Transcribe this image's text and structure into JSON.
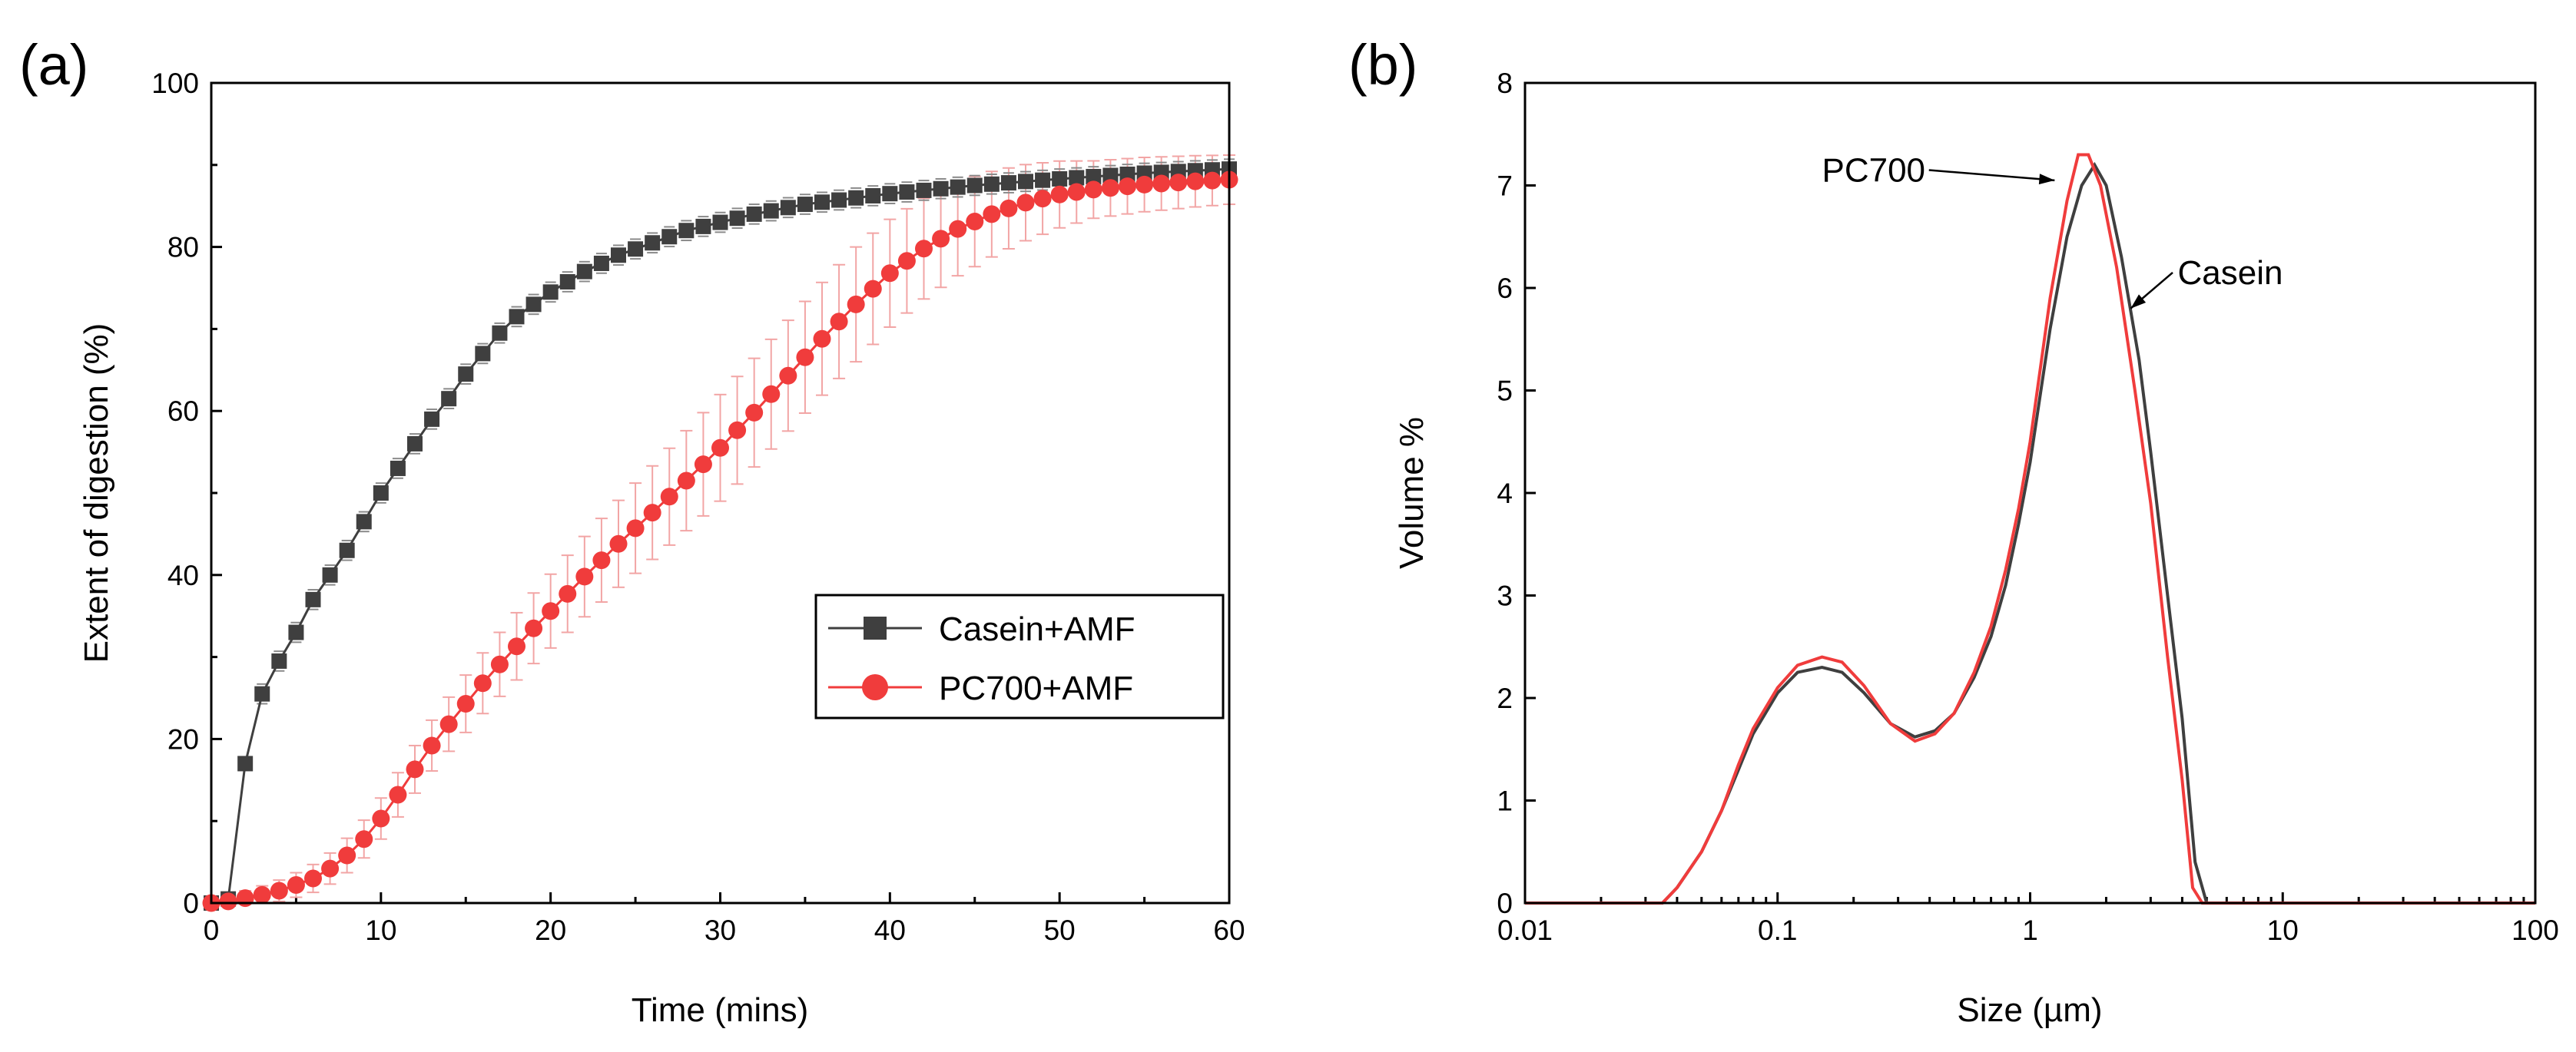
{
  "colors": {
    "casein": "#3f3f3f",
    "pc700": "#f03c3c",
    "pc700_err": "#f2a5a5",
    "axis": "#000000"
  },
  "chart_data": [
    {
      "panel": "(a)",
      "type": "line",
      "xlabel": "Time (mins)",
      "ylabel": "Extent of digestion (%)",
      "xlim": [
        0,
        60
      ],
      "ylim": [
        0,
        100
      ],
      "xticks": [
        0,
        10,
        20,
        30,
        40,
        50,
        60
      ],
      "yticks": [
        0,
        20,
        40,
        60,
        80,
        100
      ],
      "legend": {
        "placement": "center-right",
        "entries": [
          "Casein+AMF",
          "PC700+AMF"
        ]
      },
      "casein_anchors": [
        [
          0,
          0
        ],
        [
          1,
          0.5
        ],
        [
          2,
          17
        ],
        [
          3,
          25.5
        ],
        [
          4,
          29.5
        ],
        [
          5,
          33
        ],
        [
          6,
          37
        ],
        [
          7,
          40
        ],
        [
          8,
          43
        ],
        [
          9,
          46.5
        ],
        [
          10,
          50
        ],
        [
          11,
          53
        ],
        [
          12,
          56
        ],
        [
          13,
          59
        ],
        [
          14,
          61.5
        ],
        [
          15,
          64.5
        ],
        [
          16,
          67
        ],
        [
          17,
          69.5
        ],
        [
          18,
          71.5
        ],
        [
          19,
          73
        ],
        [
          20,
          74.5
        ],
        [
          22,
          77
        ],
        [
          24,
          79
        ],
        [
          26,
          80.5
        ],
        [
          28,
          82
        ],
        [
          30,
          83
        ],
        [
          32,
          84
        ],
        [
          35,
          85.2
        ],
        [
          40,
          86.5
        ],
        [
          45,
          87.5
        ],
        [
          50,
          88.3
        ],
        [
          55,
          89
        ],
        [
          60,
          89.5
        ]
      ],
      "casein_err": 1.2,
      "pc700_anchors": [
        [
          0,
          0
        ],
        [
          1,
          0.2
        ],
        [
          2,
          0.6
        ],
        [
          3,
          1
        ],
        [
          4,
          1.5
        ],
        [
          5,
          2.2
        ],
        [
          6,
          3
        ],
        [
          7,
          4.2
        ],
        [
          8,
          5.8
        ],
        [
          9,
          7.8
        ],
        [
          10,
          10.3
        ],
        [
          11,
          13.2
        ],
        [
          12,
          16.3
        ],
        [
          13,
          19.2
        ],
        [
          14,
          21.8
        ],
        [
          15,
          24.3
        ],
        [
          16,
          26.8
        ],
        [
          17,
          29.1
        ],
        [
          18,
          31.3
        ],
        [
          19,
          33.5
        ],
        [
          20,
          35.6
        ],
        [
          22,
          39.8
        ],
        [
          24,
          43.8
        ],
        [
          26,
          47.6
        ],
        [
          28,
          51.5
        ],
        [
          30,
          55.5
        ],
        [
          32,
          59.8
        ],
        [
          34,
          64.3
        ],
        [
          36,
          68.8
        ],
        [
          38,
          73
        ],
        [
          40,
          76.8
        ],
        [
          42,
          79.8
        ],
        [
          44,
          82.2
        ],
        [
          46,
          84
        ],
        [
          48,
          85.4
        ],
        [
          50,
          86.4
        ],
        [
          52,
          87
        ],
        [
          55,
          87.6
        ],
        [
          58,
          88
        ],
        [
          60,
          88.2
        ]
      ],
      "pc700_err": [
        [
          0,
          0.5
        ],
        [
          10,
          2.5
        ],
        [
          20,
          4.5
        ],
        [
          30,
          6.5
        ],
        [
          38,
          7
        ],
        [
          45,
          5.5
        ],
        [
          52,
          3.5
        ],
        [
          60,
          3
        ]
      ]
    },
    {
      "panel": "(b)",
      "type": "line",
      "xscale": "log",
      "xlabel": "Size (µm)",
      "ylabel": "Volume %",
      "xlim": [
        0.01,
        100
      ],
      "ylim": [
        0,
        8
      ],
      "xticks": [
        0.01,
        0.1,
        1,
        10,
        100
      ],
      "xtick_labels": [
        "0.01",
        "0.1",
        "1",
        "10",
        "100"
      ],
      "yticks": [
        0,
        1,
        2,
        3,
        4,
        5,
        6,
        7,
        8
      ],
      "annotations": [
        {
          "text": "PC700",
          "label_at": [
            0.24,
            7.15
          ],
          "arrow_to": [
            1.25,
            7.05
          ]
        },
        {
          "text": "Casein",
          "label_at": [
            6.2,
            6.15
          ],
          "arrow_to": [
            2.5,
            5.8
          ]
        }
      ],
      "series": [
        {
          "name": "Casein",
          "color": "#3f3f3f",
          "points": [
            [
              0.01,
              0
            ],
            [
              0.035,
              0
            ],
            [
              0.04,
              0.15
            ],
            [
              0.05,
              0.5
            ],
            [
              0.06,
              0.9
            ],
            [
              0.07,
              1.3
            ],
            [
              0.08,
              1.65
            ],
            [
              0.1,
              2.05
            ],
            [
              0.12,
              2.25
            ],
            [
              0.15,
              2.3
            ],
            [
              0.18,
              2.25
            ],
            [
              0.22,
              2.05
            ],
            [
              0.28,
              1.75
            ],
            [
              0.35,
              1.62
            ],
            [
              0.42,
              1.68
            ],
            [
              0.5,
              1.85
            ],
            [
              0.6,
              2.2
            ],
            [
              0.7,
              2.6
            ],
            [
              0.8,
              3.1
            ],
            [
              0.9,
              3.7
            ],
            [
              1.0,
              4.3
            ],
            [
              1.2,
              5.6
            ],
            [
              1.4,
              6.5
            ],
            [
              1.6,
              7.0
            ],
            [
              1.8,
              7.2
            ],
            [
              2.0,
              7.0
            ],
            [
              2.3,
              6.3
            ],
            [
              2.7,
              5.3
            ],
            [
              3.0,
              4.4
            ],
            [
              3.5,
              3.0
            ],
            [
              4.0,
              1.8
            ],
            [
              4.5,
              0.4
            ],
            [
              5.0,
              0
            ],
            [
              100,
              0
            ]
          ]
        },
        {
          "name": "PC700",
          "color": "#f03c3c",
          "points": [
            [
              0.01,
              0
            ],
            [
              0.035,
              0
            ],
            [
              0.04,
              0.15
            ],
            [
              0.05,
              0.5
            ],
            [
              0.06,
              0.9
            ],
            [
              0.07,
              1.35
            ],
            [
              0.08,
              1.7
            ],
            [
              0.1,
              2.1
            ],
            [
              0.12,
              2.32
            ],
            [
              0.15,
              2.4
            ],
            [
              0.18,
              2.35
            ],
            [
              0.22,
              2.12
            ],
            [
              0.28,
              1.75
            ],
            [
              0.35,
              1.58
            ],
            [
              0.42,
              1.65
            ],
            [
              0.5,
              1.85
            ],
            [
              0.6,
              2.25
            ],
            [
              0.7,
              2.7
            ],
            [
              0.8,
              3.25
            ],
            [
              0.9,
              3.85
            ],
            [
              1.0,
              4.5
            ],
            [
              1.2,
              5.9
            ],
            [
              1.4,
              6.85
            ],
            [
              1.55,
              7.3
            ],
            [
              1.7,
              7.3
            ],
            [
              1.9,
              7.0
            ],
            [
              2.2,
              6.2
            ],
            [
              2.6,
              5.0
            ],
            [
              3.0,
              3.9
            ],
            [
              3.5,
              2.4
            ],
            [
              4.0,
              1.2
            ],
            [
              4.4,
              0.15
            ],
            [
              4.8,
              0
            ],
            [
              100,
              0
            ]
          ]
        }
      ]
    }
  ]
}
